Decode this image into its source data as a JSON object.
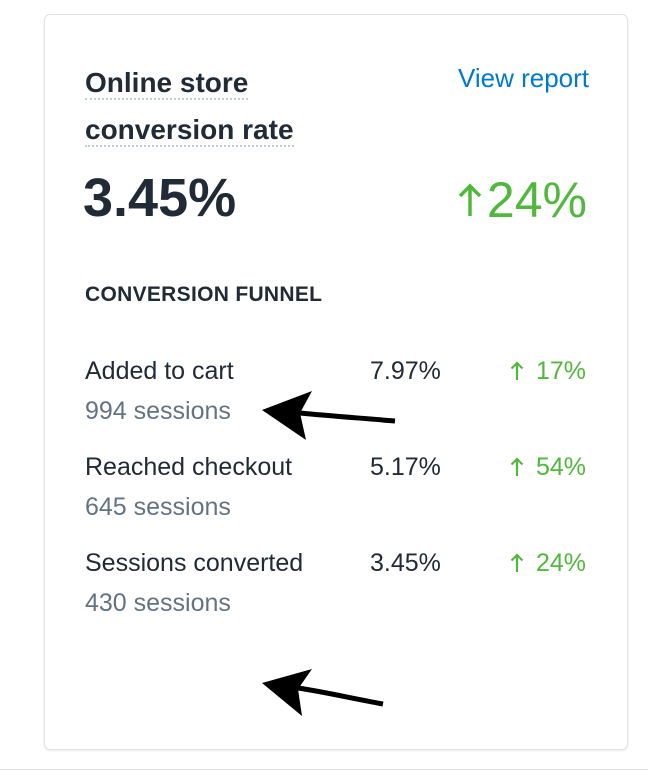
{
  "card": {
    "title": "Online store conversion rate",
    "link": "View report",
    "rate": "3.45%",
    "change": "24%",
    "funnel_title": "CONVERSION FUNNEL",
    "rows": [
      {
        "label": "Added to cart",
        "sessions": "994 sessions",
        "rate": "7.97%",
        "change": "17%"
      },
      {
        "label": "Reached checkout",
        "sessions": "645 sessions",
        "rate": "5.17%",
        "change": "54%"
      },
      {
        "label": "Sessions converted",
        "sessions": "430 sessions",
        "rate": "3.45%",
        "change": "24%"
      }
    ]
  }
}
